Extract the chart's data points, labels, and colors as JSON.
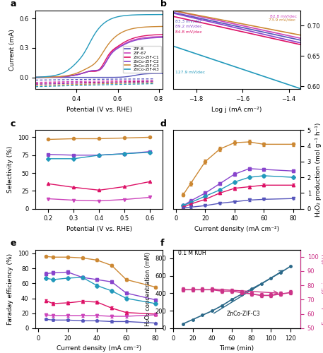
{
  "colors": {
    "ZIF8": "#5555bb",
    "ZIF67": "#cc44bb",
    "C1": "#dd1166",
    "C2": "#8844cc",
    "C3": "#cc8833",
    "R3": "#2299bb"
  },
  "panel_a": {
    "legend_labels": [
      "ZIF-8",
      "ZIF-67",
      "ZnCo-ZIF-C1",
      "ZnCo-ZIF-C2",
      "ZnCo-ZIF-C3",
      "ZnCo-ZIF-R3"
    ],
    "xlabel": "Potential (V vs. RHE)",
    "ylabel": "Current (mA)",
    "xlim": [
      0.2,
      0.82
    ],
    "ylim_neg": 0.68,
    "yticks": [
      0.0,
      0.3,
      0.6
    ]
  },
  "panel_b": {
    "xlabel": "Log j (mA cm⁻²)",
    "ylabel": "Potential (V vs. RHE)",
    "xlim": [
      -1.9,
      -1.35
    ],
    "ylim": [
      0.595,
      0.725
    ],
    "yticks": [
      0.6,
      0.65,
      0.7
    ],
    "xticks": [
      -1.8,
      -1.6,
      -1.4
    ]
  },
  "panel_c": {
    "xlabel": "Potential (V vs. RHE)",
    "ylabel": "Selectivity (%)",
    "xlim": [
      0.15,
      0.65
    ],
    "ylim": [
      0,
      110
    ],
    "xticks": [
      0.2,
      0.3,
      0.4,
      0.5,
      0.6
    ],
    "yticks": [
      0,
      25,
      50,
      75,
      100
    ]
  },
  "panel_d": {
    "xlabel": "Current density (mA cm⁻²)",
    "ylabel": "H₂O₂ production (mol g⁻¹ h⁻¹)",
    "xlim": [
      -2,
      85
    ],
    "ylim": [
      0,
      5
    ],
    "yticks": [
      0,
      1,
      2,
      3,
      4,
      5
    ]
  },
  "panel_e": {
    "xlabel": "Current density (mA cm⁻²)",
    "ylabel": "Faraday efficiency (%)",
    "xlim": [
      -2,
      85
    ],
    "ylim": [
      0,
      105
    ],
    "yticks": [
      0,
      20,
      40,
      60,
      80,
      100
    ]
  },
  "panel_f": {
    "xlabel": "Time (min)",
    "ylabel_left": "H₂O₂ concentration (mM)",
    "ylabel_right": "Faraday efficiency (%)",
    "annotation1": "0.1 M KOH",
    "annotation2": "ZnCo-ZIF-C3",
    "xlim": [
      0,
      130
    ],
    "ylim_left": [
      0,
      900
    ],
    "ylim_right": [
      50,
      105
    ],
    "yticks_left": [
      0,
      200,
      400,
      600,
      800
    ],
    "yticks_right": [
      50,
      60,
      70,
      80,
      90,
      100
    ],
    "xticks": [
      0,
      20,
      40,
      60,
      80,
      100,
      120
    ]
  }
}
